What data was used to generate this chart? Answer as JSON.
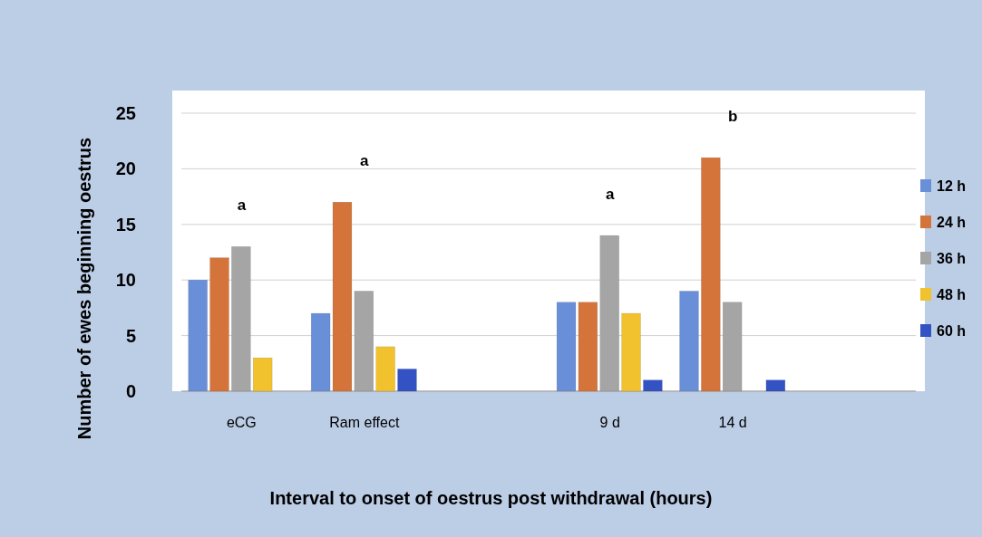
{
  "chart_data": {
    "type": "bar",
    "xlabel": "Interval to onset of oestrus post withdrawal (hours)",
    "ylabel": "Number of ewes beginning oestrus",
    "categories": [
      "eCG",
      "Ram effect",
      null,
      "9 d",
      "14 d",
      null
    ],
    "series": [
      {
        "name": "12 h",
        "color": "#6a8fd9",
        "values": [
          10,
          7,
          null,
          8,
          9,
          null
        ]
      },
      {
        "name": "24 h",
        "color": "#d4743a",
        "values": [
          12,
          17,
          null,
          8,
          21,
          null
        ]
      },
      {
        "name": "36 h",
        "color": "#a5a5a5",
        "values": [
          13,
          9,
          null,
          14,
          8,
          null
        ]
      },
      {
        "name": "48 h",
        "color": "#f2c12e",
        "values": [
          3,
          4,
          null,
          7,
          null,
          null
        ]
      },
      {
        "name": "60 h",
        "color": "#3352c4",
        "values": [
          null,
          2,
          null,
          1,
          1,
          null
        ]
      }
    ],
    "ylim": [
      0,
      25
    ],
    "yticks": [
      0,
      5,
      10,
      15,
      20,
      25
    ],
    "grid": "y",
    "legend": "right",
    "annotations": [
      "a",
      "a",
      "a",
      "b"
    ]
  }
}
